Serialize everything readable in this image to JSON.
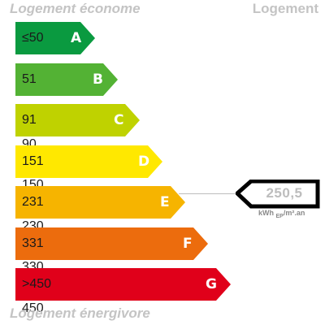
{
  "header": {
    "top_left": "Logement économe",
    "top_right": "Logement",
    "bottom_left": "Logement énergivore"
  },
  "bands": [
    {
      "letter": "A",
      "range": "≤50",
      "color": "#0a9a40"
    },
    {
      "letter": "B",
      "range": "51 à 90",
      "color": "#53b234"
    },
    {
      "letter": "C",
      "range": "91 à 150",
      "color": "#bfd200"
    },
    {
      "letter": "D",
      "range": "151 à 230",
      "color": "#ffe800"
    },
    {
      "letter": "E",
      "range": "231 à 330",
      "color": "#f6b400"
    },
    {
      "letter": "F",
      "range": "331 à 450",
      "color": "#ec6c0d"
    },
    {
      "letter": "G",
      "range": ">450",
      "color": "#e0001a"
    }
  ],
  "value": {
    "number": "250,5",
    "unit_main": "kWh",
    "unit_sub": "EP",
    "unit_tail": "/m².an",
    "band_letter": "E"
  }
}
